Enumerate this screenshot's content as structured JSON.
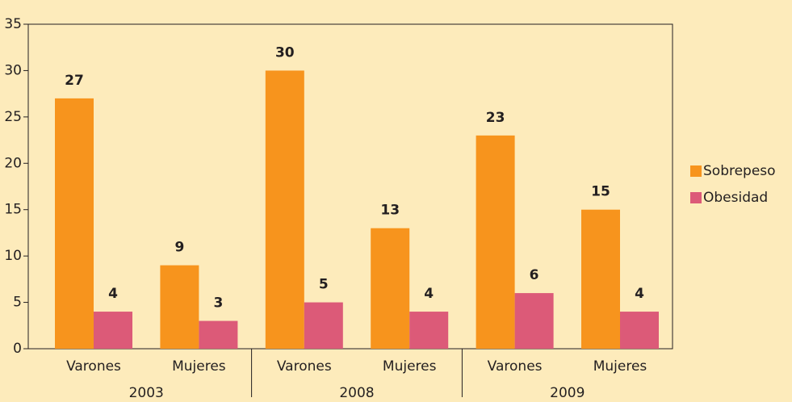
{
  "chart_data": {
    "type": "bar",
    "categories": [
      "Varones",
      "Mujeres",
      "Varones",
      "Mujeres",
      "Varones",
      "Mujeres"
    ],
    "groups": [
      "2003",
      "2008",
      "2009"
    ],
    "series": [
      {
        "name": "Sobrepeso",
        "color": "#f7941d",
        "values": [
          27,
          9,
          30,
          13,
          23,
          15
        ]
      },
      {
        "name": "Obesidad",
        "color": "#dc5a78",
        "values": [
          4,
          3,
          5,
          4,
          6,
          4
        ]
      }
    ],
    "ylim": [
      0,
      35
    ],
    "yticks": [
      0,
      5,
      10,
      15,
      20,
      25,
      30,
      35
    ],
    "grid": false,
    "legend": "right"
  }
}
